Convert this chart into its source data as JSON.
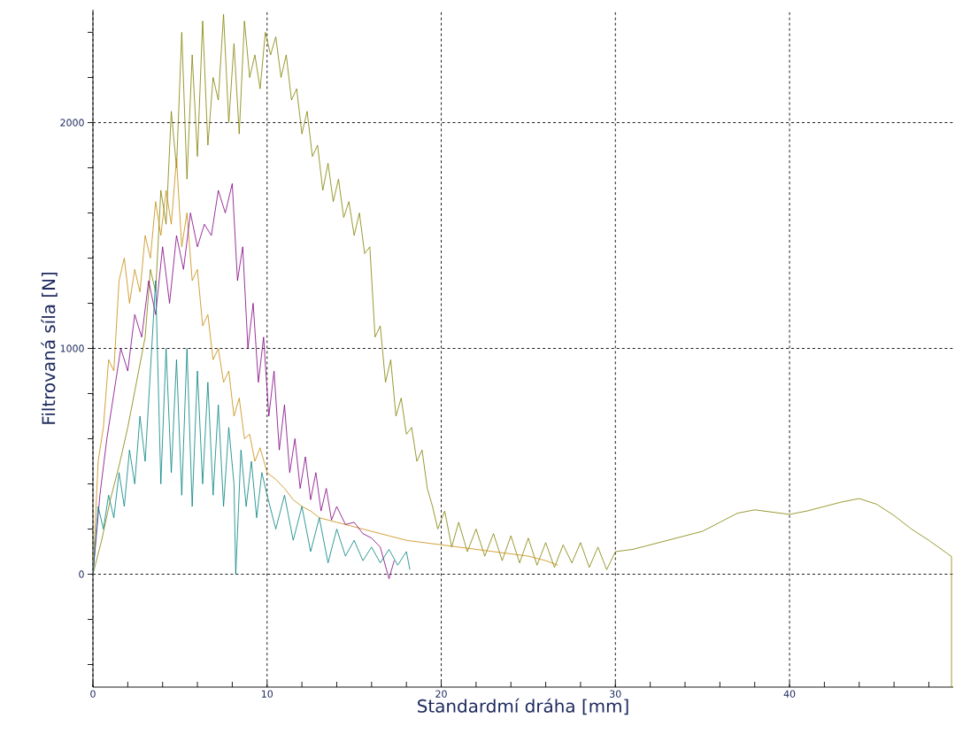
{
  "chart_data": {
    "type": "line",
    "xlabel": "Standardmí dráha [mm]",
    "ylabel": "Filtrovaná síla [N]",
    "xlim": [
      0,
      49.4
    ],
    "ylim": [
      -500,
      2500
    ],
    "xticks": [
      0,
      {
        "value": 2,
        "label": null
      },
      {
        "value": 4,
        "label": null
      },
      {
        "value": 6,
        "label": null
      },
      {
        "value": 8,
        "label": null
      },
      10,
      {
        "value": 12,
        "label": null
      },
      {
        "value": 14,
        "label": null
      },
      {
        "value": 16,
        "label": null
      },
      {
        "value": 18,
        "label": null
      },
      20,
      {
        "value": 22,
        "label": null
      },
      {
        "value": 24,
        "label": null
      },
      {
        "value": 26,
        "label": null
      },
      {
        "value": 28,
        "label": null
      },
      30,
      {
        "value": 32,
        "label": null
      },
      {
        "value": 34,
        "label": null
      },
      {
        "value": 36,
        "label": null
      },
      {
        "value": 38,
        "label": null
      },
      40,
      {
        "value": 42,
        "label": null
      },
      {
        "value": 44,
        "label": null
      },
      {
        "value": 46,
        "label": null
      },
      {
        "value": 48,
        "label": null
      }
    ],
    "yticks": [
      {
        "value": -400,
        "label": null
      },
      {
        "value": -200,
        "label": null
      },
      0,
      {
        "value": 200,
        "label": null
      },
      {
        "value": 400,
        "label": null
      },
      {
        "value": 600,
        "label": null
      },
      {
        "value": 800,
        "label": null
      },
      1000,
      {
        "value": 1200,
        "label": null
      },
      {
        "value": 1400,
        "label": null
      },
      {
        "value": 1600,
        "label": null
      },
      {
        "value": 1800,
        "label": null
      },
      2000,
      {
        "value": 2200,
        "label": null
      },
      {
        "value": 2400,
        "label": null
      }
    ],
    "grid": true,
    "line_style": "solid",
    "series": [
      {
        "color": "#808000",
        "x": [
          0,
          0.5,
          1,
          1.5,
          2,
          2.5,
          3,
          3.3,
          3.6,
          3.9,
          4.2,
          4.5,
          4.8,
          5.1,
          5.4,
          5.7,
          6,
          6.3,
          6.6,
          6.9,
          7.2,
          7.5,
          7.8,
          8.1,
          8.4,
          8.7,
          9,
          9.3,
          9.6,
          9.9,
          10.2,
          10.5,
          10.8,
          11.1,
          11.4,
          11.7,
          12,
          12.3,
          12.6,
          12.9,
          13.2,
          13.5,
          13.8,
          14.1,
          14.4,
          14.7,
          15,
          15.3,
          15.6,
          15.9,
          16.2,
          16.5,
          16.8,
          17.1,
          17.4,
          17.7,
          18,
          18.3,
          18.6,
          18.9,
          19.2,
          19.5,
          19.8,
          20.2,
          20.6,
          21,
          21.5,
          22,
          22.5,
          23,
          23.5,
          24,
          24.5,
          25,
          25.5,
          26,
          26.5,
          27,
          27.5,
          28,
          28.5,
          29,
          29.5,
          30,
          31,
          32,
          33,
          34,
          35,
          36,
          37,
          38,
          39,
          40,
          41,
          42,
          43,
          44,
          45,
          46,
          47,
          48,
          49,
          49.3,
          49.3
        ],
        "values": [
          0,
          150,
          330,
          480,
          650,
          850,
          1050,
          1350,
          1250,
          1700,
          1550,
          2050,
          1800,
          2400,
          1750,
          2300,
          1850,
          2450,
          1900,
          2200,
          2100,
          2480,
          2000,
          2350,
          1950,
          2450,
          2200,
          2300,
          2150,
          2400,
          2300,
          2380,
          2200,
          2300,
          2100,
          2150,
          1950,
          2050,
          1850,
          1900,
          1700,
          1820,
          1650,
          1750,
          1580,
          1650,
          1500,
          1600,
          1420,
          1450,
          1050,
          1100,
          850,
          950,
          700,
          780,
          620,
          650,
          500,
          550,
          380,
          300,
          200,
          280,
          120,
          230,
          100,
          200,
          80,
          180,
          60,
          170,
          50,
          160,
          40,
          140,
          30,
          130,
          50,
          140,
          30,
          120,
          20,
          100,
          110,
          130,
          150,
          170,
          190,
          230,
          270,
          285,
          275,
          265,
          280,
          300,
          320,
          335,
          310,
          260,
          200,
          150,
          95,
          78,
          -500
        ]
      },
      {
        "color": "#c88a0a",
        "x": [
          0,
          0.3,
          0.6,
          0.9,
          1.2,
          1.5,
          1.8,
          2.1,
          2.4,
          2.7,
          3,
          3.3,
          3.6,
          3.9,
          4.2,
          4.5,
          4.8,
          5.1,
          5.4,
          5.7,
          6,
          6.3,
          6.6,
          6.9,
          7.2,
          7.5,
          7.8,
          8.1,
          8.4,
          8.7,
          9,
          9.3,
          9.6,
          10,
          10.5,
          11,
          11.5,
          12,
          12.5,
          13,
          14,
          15,
          16,
          17,
          18,
          19,
          20,
          21,
          22,
          23,
          24,
          25,
          26,
          26.7
        ],
        "values": [
          0,
          500,
          650,
          950,
          900,
          1300,
          1400,
          1200,
          1350,
          1250,
          1500,
          1400,
          1650,
          1500,
          1700,
          1550,
          1840,
          1450,
          1600,
          1300,
          1350,
          1100,
          1150,
          950,
          1000,
          850,
          900,
          700,
          780,
          600,
          620,
          500,
          560,
          450,
          420,
          380,
          330,
          300,
          280,
          250,
          230,
          210,
          190,
          170,
          150,
          140,
          130,
          120,
          110,
          100,
          90,
          80,
          60,
          40
        ]
      },
      {
        "color": "#800080",
        "x": [
          0,
          0.4,
          0.8,
          1.2,
          1.6,
          2,
          2.4,
          2.8,
          3.2,
          3.6,
          4,
          4.4,
          4.8,
          5.2,
          5.6,
          6,
          6.4,
          6.8,
          7.2,
          7.6,
          8,
          8.3,
          8.6,
          8.9,
          9.2,
          9.5,
          9.8,
          10.1,
          10.4,
          10.7,
          11,
          11.3,
          11.6,
          11.9,
          12.2,
          12.5,
          12.8,
          13.1,
          13.4,
          13.7,
          14,
          14.5,
          15,
          15.5,
          16,
          16.5,
          17,
          17.3
        ],
        "values": [
          0,
          350,
          600,
          800,
          1000,
          900,
          1150,
          1050,
          1300,
          1150,
          1450,
          1200,
          1500,
          1350,
          1600,
          1450,
          1550,
          1500,
          1700,
          1600,
          1730,
          1300,
          1450,
          1000,
          1200,
          850,
          1050,
          700,
          900,
          550,
          750,
          450,
          600,
          380,
          520,
          330,
          450,
          280,
          380,
          240,
          300,
          220,
          230,
          180,
          160,
          120,
          -20,
          60
        ]
      },
      {
        "color": "#008080",
        "x": [
          0,
          0.3,
          0.6,
          0.9,
          1.2,
          1.5,
          1.8,
          2.1,
          2.4,
          2.7,
          3,
          3.3,
          3.6,
          3.9,
          4.2,
          4.5,
          4.8,
          5.1,
          5.4,
          5.7,
          6,
          6.3,
          6.6,
          6.9,
          7.2,
          7.5,
          7.8,
          8.1,
          8.2,
          8.5,
          8.8,
          9.1,
          9.4,
          9.7,
          10,
          10.5,
          11,
          11.5,
          12,
          12.5,
          13,
          13.5,
          14,
          14.5,
          15,
          15.5,
          16,
          16.5,
          17,
          17.5,
          18,
          18.2
        ],
        "values": [
          0,
          300,
          200,
          350,
          250,
          450,
          300,
          550,
          400,
          700,
          500,
          900,
          1300,
          400,
          1000,
          450,
          950,
          350,
          1000,
          300,
          900,
          400,
          850,
          350,
          750,
          300,
          650,
          400,
          0,
          550,
          300,
          500,
          250,
          450,
          350,
          200,
          350,
          150,
          300,
          100,
          250,
          50,
          200,
          80,
          150,
          60,
          120,
          50,
          110,
          40,
          100,
          20
        ]
      }
    ]
  }
}
